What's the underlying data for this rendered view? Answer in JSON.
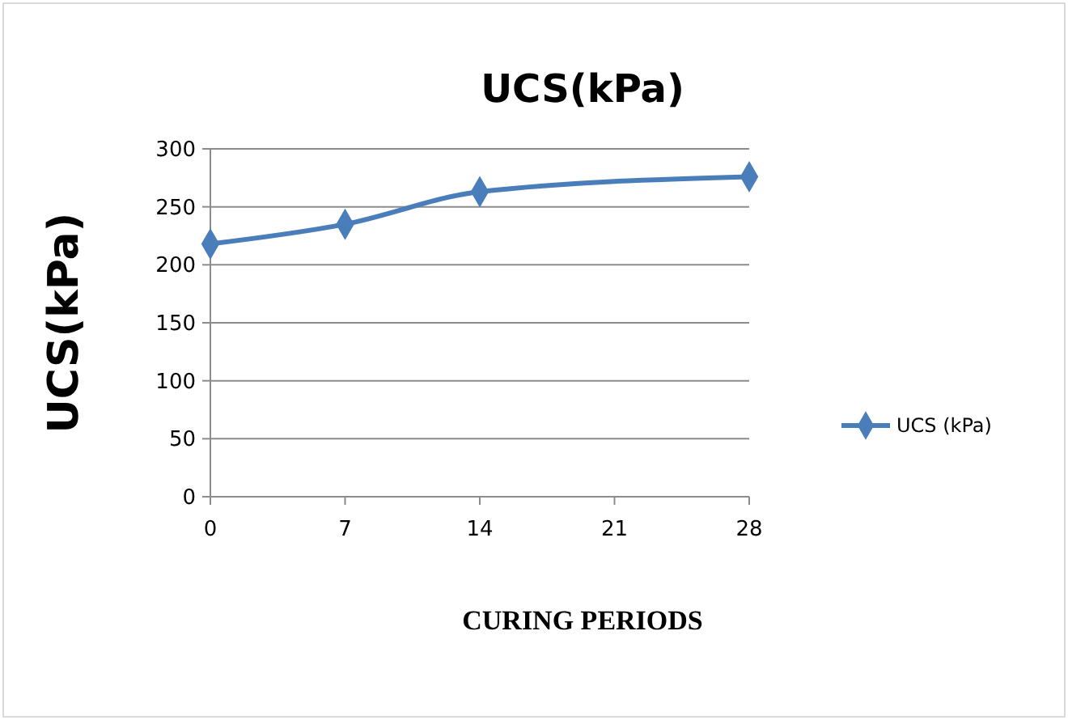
{
  "chart_data": {
    "type": "line",
    "title": "UCS(kPa)",
    "xlabel": "CURING PERIODS",
    "ylabel": "UCS(kPa)",
    "x": [
      0,
      7,
      14,
      28
    ],
    "series": [
      {
        "name": "UCS (kPa)",
        "color": "#4a7ebb",
        "values": [
          218,
          235,
          263,
          276
        ]
      }
    ],
    "xlim": [
      0,
      28
    ],
    "xticks": [
      0,
      7,
      14,
      21,
      28
    ],
    "ylim": [
      0,
      300
    ],
    "yticks": [
      0,
      50,
      100,
      150,
      200,
      250,
      300
    ],
    "grid": "y",
    "legend": "right",
    "marker": "diamond",
    "line_style": "solid"
  }
}
